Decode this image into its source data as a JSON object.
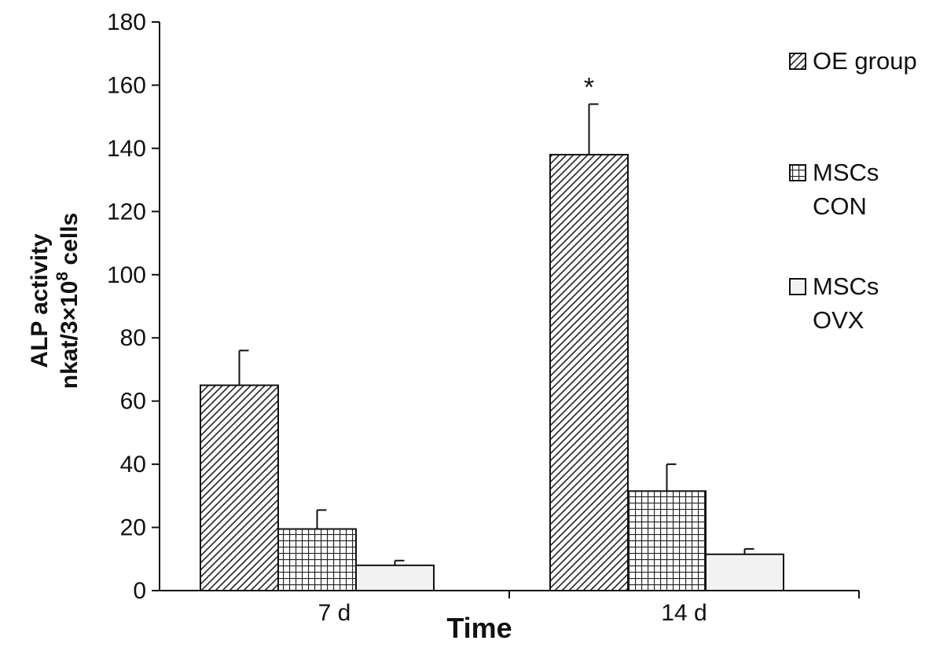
{
  "chart_data": {
    "type": "bar",
    "title": "",
    "xlabel": "Time",
    "ylabel_line1": "ALP activity",
    "ylabel_line2_prefix": "nkat/3",
    "ylabel_times": "×",
    "ylabel_base": "10",
    "ylabel_exp": "8",
    "ylabel_suffix": " cells",
    "ylim": [
      0,
      180
    ],
    "yticks": [
      "0",
      "20",
      "40",
      "60",
      "80",
      "100",
      "120",
      "140",
      "160",
      "180"
    ],
    "categories": [
      "7 d",
      "14 d"
    ],
    "series": [
      {
        "name": "OE group",
        "legend_lines": [
          "OE group"
        ],
        "pattern": "diagonal-hatch",
        "fill": "#ffffff",
        "values": [
          65,
          138
        ],
        "errors": [
          11,
          16
        ]
      },
      {
        "name": "MSCs CON",
        "legend_lines": [
          "MSCs",
          "CON"
        ],
        "pattern": "grid-hatch",
        "fill": "#ffffff",
        "values": [
          19.5,
          31.5
        ],
        "errors": [
          6,
          8.5
        ]
      },
      {
        "name": "MSCs OVX",
        "legend_lines": [
          "MSCs",
          "OVX"
        ],
        "pattern": "solid",
        "fill": "#f2f2f2",
        "values": [
          8,
          11.5
        ],
        "errors": [
          1.5,
          1.7
        ]
      }
    ],
    "annotations": [
      {
        "text": "*",
        "category": "14 d",
        "series": "OE group"
      }
    ],
    "legend_position": "right",
    "grid": false,
    "colors": {
      "axis": "#111111",
      "bar_edge": "#111111",
      "hatch": "#222222"
    }
  }
}
